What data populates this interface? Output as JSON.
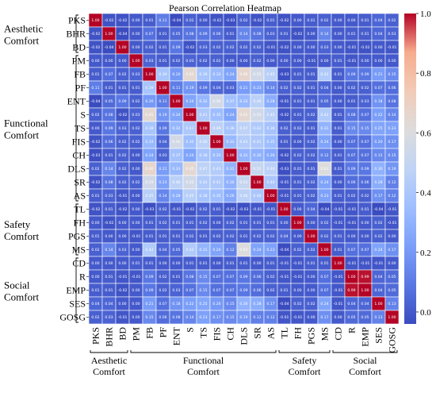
{
  "chart_data": {
    "type": "heatmap",
    "title": "Pearson Correlation Heatmap",
    "labels": [
      "PKS",
      "BHR",
      "BD",
      "PM",
      "FB",
      "PF",
      "ENT",
      "S",
      "TS",
      "FIS",
      "CH",
      "DLS",
      "SR",
      "AS",
      "TL",
      "FH",
      "PGS",
      "MS",
      "CD",
      "R",
      "EMP",
      "SES",
      "GOSG"
    ],
    "groups": [
      {
        "name_lines": [
          "Aesthetic",
          "Comfort"
        ],
        "start": 0,
        "end": 2
      },
      {
        "name_lines": [
          "Functional",
          "Comfort"
        ],
        "start": 3,
        "end": 13
      },
      {
        "name_lines": [
          "Safety",
          "Comfort"
        ],
        "start": 14,
        "end": 17
      },
      {
        "name_lines": [
          "Social",
          "Comfort"
        ],
        "start": 18,
        "end": 22
      }
    ],
    "matrix": [
      [
        1.0,
        -0.02,
        -0.02,
        0.0,
        0.01,
        0.11,
        -0.04,
        0.02,
        -0.0,
        -0.02,
        -0.03,
        0.02,
        -0.02,
        0.01,
        -0.02,
        0.0,
        0.01,
        0.02,
        -0.0,
        0.0,
        0.01,
        0.04,
        0.02
      ],
      [
        -0.02,
        1.0,
        -0.04,
        -0.0,
        0.07,
        0.01,
        0.05,
        0.08,
        0.09,
        0.06,
        0.01,
        0.14,
        0.08,
        0.03,
        0.01,
        -0.02,
        0.0,
        0.14,
        -0.0,
        0.01,
        0.01,
        0.04,
        0.03
      ],
      [
        -0.02,
        -0.04,
        1.0,
        -0.0,
        0.02,
        0.01,
        0.09,
        -0.02,
        0.03,
        0.02,
        0.02,
        0.02,
        0.02,
        -0.01,
        -0.02,
        0.0,
        0.0,
        0.03,
        -0.0,
        -0.01,
        -0.02,
        -0.0,
        -0.01
      ],
      [
        -0.0,
        -0.0,
        -0.0,
        1.0,
        0.03,
        0.01,
        0.02,
        0.03,
        0.02,
        0.02,
        0.0,
        0.0,
        0.02,
        0.0,
        0.0,
        0.0,
        -0.01,
        0.0,
        0.01,
        -0.01,
        0.0,
        -0.0,
        0.0
      ],
      [
        0.01,
        0.07,
        0.02,
        0.03,
        1.0,
        0.39,
        0.2,
        0.65,
        0.39,
        0.33,
        0.24,
        0.66,
        0.55,
        0.45,
        -0.03,
        0.01,
        0.01,
        0.42,
        0.01,
        0.09,
        0.09,
        0.21,
        0.15
      ],
      [
        0.11,
        0.01,
        0.01,
        0.01,
        0.39,
        1.0,
        0.11,
        0.19,
        0.09,
        0.04,
        0.03,
        0.21,
        0.23,
        0.14,
        0.02,
        0.02,
        0.01,
        0.04,
        0.0,
        0.02,
        0.02,
        0.07,
        0.06
      ],
      [
        -0.04,
        0.05,
        0.09,
        0.02,
        0.2,
        0.11,
        1.0,
        0.24,
        0.32,
        0.56,
        0.37,
        0.33,
        0.46,
        0.28,
        -0.01,
        0.01,
        0.01,
        0.05,
        0.0,
        0.01,
        0.03,
        0.18,
        0.08
      ],
      [
        0.02,
        0.08,
        -0.02,
        0.03,
        0.65,
        0.19,
        0.24,
        1.0,
        0.41,
        0.35,
        0.24,
        0.65,
        0.55,
        0.45,
        -0.02,
        0.01,
        0.02,
        0.42,
        0.01,
        0.08,
        0.07,
        0.22,
        0.14
      ],
      [
        -0.0,
        0.09,
        0.03,
        0.02,
        0.39,
        0.09,
        0.32,
        0.41,
        1.0,
        0.46,
        0.38,
        0.47,
        0.42,
        0.38,
        0.02,
        0.02,
        0.01,
        0.31,
        0.01,
        0.15,
        0.15,
        0.25,
        0.23
      ],
      [
        -0.02,
        0.06,
        0.02,
        0.02,
        0.33,
        0.04,
        0.56,
        0.35,
        0.46,
        1.0,
        0.33,
        0.43,
        0.41,
        0.35,
        0.01,
        0.0,
        0.02,
        0.24,
        0.0,
        0.07,
        0.07,
        0.2,
        0.17
      ],
      [
        -0.03,
        0.01,
        0.02,
        0.0,
        0.24,
        0.03,
        0.37,
        0.24,
        0.38,
        0.33,
        1.0,
        0.31,
        0.3,
        0.26,
        -0.02,
        0.02,
        0.02,
        0.12,
        0.01,
        0.07,
        0.07,
        0.15,
        0.15
      ],
      [
        0.02,
        0.14,
        0.02,
        0.0,
        0.66,
        0.21,
        0.33,
        0.65,
        0.47,
        0.43,
        0.31,
        1.0,
        0.51,
        0.46,
        -0.03,
        0.01,
        0.01,
        0.61,
        0.01,
        0.09,
        0.09,
        0.3,
        0.19
      ],
      [
        -0.02,
        0.08,
        0.02,
        0.02,
        0.55,
        0.23,
        0.46,
        0.55,
        0.42,
        0.41,
        0.3,
        0.51,
        1.0,
        0.4,
        -0.01,
        0.01,
        0.02,
        0.24,
        0.0,
        0.06,
        0.06,
        0.28,
        0.12
      ],
      [
        0.01,
        0.03,
        -0.01,
        0.0,
        0.45,
        0.14,
        0.28,
        0.45,
        0.38,
        0.35,
        0.26,
        0.46,
        0.4,
        1.0,
        -0.01,
        0.01,
        0.02,
        0.23,
        0.01,
        0.02,
        0.02,
        0.17,
        0.12
      ],
      [
        -0.02,
        0.01,
        -0.02,
        0.0,
        -0.03,
        0.02,
        -0.01,
        -0.02,
        0.02,
        0.01,
        -0.02,
        -0.03,
        -0.01,
        -0.01,
        1.0,
        0.0,
        0.04,
        -0.04,
        -0.01,
        -0.01,
        0.01,
        -0.04,
        -0.01
      ],
      [
        0.0,
        -0.02,
        0.0,
        0.0,
        0.01,
        0.02,
        0.01,
        0.01,
        0.02,
        0.0,
        0.02,
        0.01,
        0.01,
        0.01,
        0.0,
        1.0,
        0.0,
        0.02,
        -0.01,
        -0.01,
        -0.0,
        0.02,
        -0.01
      ],
      [
        0.01,
        0.0,
        0.0,
        -0.01,
        0.01,
        0.01,
        0.01,
        0.02,
        0.01,
        0.02,
        0.02,
        0.01,
        0.02,
        0.02,
        0.04,
        0.0,
        1.0,
        0.02,
        0.01,
        -0.0,
        -0.0,
        0.02,
        0.0
      ],
      [
        0.02,
        0.14,
        0.03,
        0.0,
        0.42,
        0.04,
        0.05,
        0.42,
        0.31,
        0.24,
        0.12,
        0.61,
        0.24,
        0.23,
        -0.04,
        0.02,
        0.02,
        1.0,
        0.01,
        0.07,
        0.07,
        0.24,
        0.17
      ],
      [
        -0.0,
        -0.0,
        -0.0,
        0.01,
        0.01,
        0.0,
        0.0,
        0.01,
        0.01,
        0.0,
        0.01,
        0.01,
        0.0,
        0.01,
        -0.01,
        -0.01,
        0.01,
        0.01,
        1.0,
        -0.01,
        -0.01,
        -0.01,
        -0.0
      ],
      [
        0.0,
        0.01,
        -0.01,
        -0.01,
        0.09,
        0.02,
        0.01,
        0.08,
        0.15,
        0.07,
        0.07,
        0.09,
        0.06,
        0.02,
        -0.01,
        -0.01,
        -0.0,
        0.07,
        -0.01,
        1.0,
        0.99,
        0.04,
        0.05
      ],
      [
        0.01,
        0.01,
        -0.02,
        0.0,
        0.09,
        0.02,
        0.03,
        0.07,
        0.15,
        0.07,
        0.07,
        0.09,
        0.06,
        0.02,
        0.01,
        -0.0,
        -0.0,
        0.07,
        -0.01,
        0.99,
        1.0,
        0.04,
        0.05
      ],
      [
        0.04,
        0.04,
        -0.0,
        -0.0,
        0.21,
        0.07,
        0.18,
        0.22,
        0.25,
        0.2,
        0.15,
        0.3,
        0.28,
        0.17,
        -0.04,
        0.02,
        0.02,
        0.24,
        -0.01,
        0.04,
        0.04,
        1.0,
        0.13
      ],
      [
        0.02,
        0.03,
        -0.01,
        0.0,
        0.15,
        0.06,
        0.08,
        0.14,
        0.23,
        0.17,
        0.15,
        0.19,
        0.12,
        0.12,
        -0.01,
        -0.01,
        0.0,
        0.17,
        -0.0,
        0.05,
        0.05,
        0.13,
        1.0
      ]
    ],
    "colorbar": {
      "ticks": [
        0.0,
        0.2,
        0.4,
        0.6,
        0.8,
        1.0
      ],
      "tick_labels": [
        "0.0",
        "0.2",
        "0.4",
        "0.6",
        "0.8",
        "1.0"
      ],
      "range": [
        -0.04,
        1.0
      ]
    },
    "colormap": {
      "low": "#3b4cc0",
      "mid": "#dddddd",
      "high": "#b40426"
    }
  }
}
